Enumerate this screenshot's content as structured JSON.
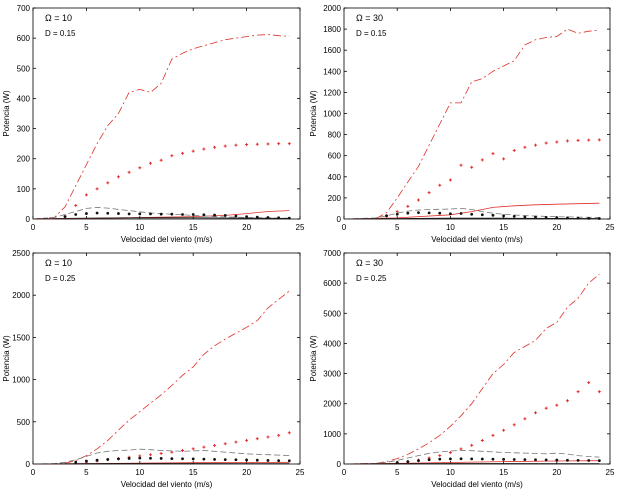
{
  "colors": {
    "red": "#e0302a",
    "black": "#111111",
    "gray": "#777777",
    "axis": "#000000"
  },
  "chart_data": [
    {
      "type": "line",
      "annotation_omega": "Ω = 10",
      "annotation_D": "D = 0.15",
      "xlabel": "Velocidad del viento (m/s)",
      "ylabel": "Potencia (W)",
      "xlim": [
        0,
        25
      ],
      "ylim": [
        0,
        700
      ],
      "xticks": [
        0,
        5,
        10,
        15,
        20,
        25
      ],
      "yticks": [
        0,
        100,
        200,
        300,
        400,
        500,
        600,
        700
      ],
      "series": [
        {
          "style": "dashdot",
          "color": "red",
          "x": [
            0,
            2,
            3,
            4,
            5,
            6,
            7,
            8,
            9,
            10,
            11,
            12,
            13,
            14,
            15,
            16,
            17,
            18,
            19,
            20,
            21,
            22,
            23,
            24
          ],
          "y": [
            0,
            5,
            40,
            110,
            180,
            250,
            310,
            350,
            420,
            430,
            420,
            450,
            530,
            550,
            565,
            575,
            585,
            595,
            600,
            605,
            610,
            612,
            608,
            606
          ]
        },
        {
          "style": "plus-markers",
          "color": "red",
          "x": [
            3,
            4,
            5,
            6,
            7,
            8,
            9,
            10,
            11,
            12,
            13,
            14,
            15,
            16,
            17,
            18,
            19,
            20,
            21,
            22,
            23,
            24
          ],
          "y": [
            10,
            45,
            80,
            100,
            120,
            140,
            155,
            170,
            185,
            195,
            210,
            218,
            225,
            232,
            238,
            242,
            245,
            247,
            248,
            249,
            250,
            250
          ]
        },
        {
          "style": "solid",
          "color": "red",
          "x": [
            0,
            5,
            10,
            15,
            18,
            20,
            22,
            24
          ],
          "y": [
            0,
            2,
            5,
            8,
            12,
            18,
            25,
            28
          ]
        },
        {
          "style": "dashed",
          "color": "gray",
          "x": [
            0,
            2,
            3,
            4,
            5,
            6,
            7,
            8,
            9,
            10,
            11,
            12,
            13,
            14,
            15,
            16,
            17,
            18,
            19,
            20,
            21,
            22,
            23,
            24
          ],
          "y": [
            0,
            5,
            15,
            25,
            35,
            38,
            36,
            32,
            28,
            24,
            20,
            18,
            16,
            14,
            12,
            10,
            8,
            7,
            6,
            5,
            4,
            4,
            3,
            3
          ]
        },
        {
          "style": "dot-markers",
          "color": "black",
          "x": [
            3,
            4,
            5,
            6,
            7,
            8,
            9,
            10,
            11,
            12,
            13,
            14,
            15,
            16,
            17,
            18,
            19,
            20,
            21,
            22,
            23,
            24
          ],
          "y": [
            8,
            15,
            18,
            20,
            19,
            18,
            17,
            17,
            17,
            16,
            16,
            15,
            15,
            14,
            13,
            12,
            10,
            8,
            6,
            5,
            4,
            3
          ]
        },
        {
          "style": "solid",
          "color": "black",
          "x": [
            0,
            3,
            5,
            10,
            15,
            20,
            24
          ],
          "y": [
            0,
            2,
            3,
            4,
            4,
            3,
            2
          ]
        }
      ]
    },
    {
      "type": "line",
      "annotation_omega": "Ω = 30",
      "annotation_D": "D = 0.15",
      "xlabel": "Velocidad del viento (m/s)",
      "ylabel": "Potencia (W)",
      "xlim": [
        0,
        25
      ],
      "ylim": [
        0,
        2000
      ],
      "xticks": [
        0,
        5,
        10,
        15,
        20,
        25
      ],
      "yticks": [
        0,
        200,
        400,
        600,
        800,
        1000,
        1200,
        1400,
        1600,
        1800,
        2000
      ],
      "series": [
        {
          "style": "dashdot",
          "color": "red",
          "x": [
            0,
            3,
            4,
            5,
            6,
            7,
            8,
            9,
            10,
            11,
            12,
            13,
            14,
            15,
            16,
            17,
            18,
            19,
            20,
            21,
            22,
            23,
            24
          ],
          "y": [
            0,
            5,
            60,
            200,
            350,
            500,
            700,
            900,
            1100,
            1100,
            1300,
            1330,
            1400,
            1450,
            1500,
            1650,
            1700,
            1720,
            1730,
            1800,
            1760,
            1780,
            1790
          ]
        },
        {
          "style": "plus-markers",
          "color": "red",
          "x": [
            4,
            5,
            6,
            7,
            8,
            9,
            10,
            11,
            12,
            13,
            14,
            15,
            16,
            17,
            18,
            19,
            20,
            21,
            22,
            23,
            24
          ],
          "y": [
            30,
            70,
            120,
            180,
            250,
            320,
            370,
            510,
            490,
            560,
            620,
            570,
            650,
            680,
            700,
            720,
            730,
            740,
            745,
            748,
            750
          ]
        },
        {
          "style": "solid",
          "color": "red",
          "x": [
            0,
            5,
            10,
            12,
            14,
            16,
            18,
            20,
            22,
            24
          ],
          "y": [
            0,
            10,
            40,
            70,
            110,
            125,
            135,
            140,
            145,
            150
          ]
        },
        {
          "style": "dashed",
          "color": "gray",
          "x": [
            0,
            3,
            4,
            5,
            6,
            7,
            8,
            9,
            10,
            11,
            12,
            13,
            14,
            15,
            16,
            17,
            18,
            19,
            20,
            21,
            22,
            23,
            24
          ],
          "y": [
            0,
            10,
            30,
            55,
            75,
            85,
            90,
            92,
            95,
            100,
            90,
            70,
            55,
            45,
            38,
            32,
            28,
            25,
            22,
            20,
            18,
            16,
            15
          ]
        },
        {
          "style": "dot-markers",
          "color": "black",
          "x": [
            4,
            5,
            6,
            7,
            8,
            9,
            10,
            11,
            12,
            13,
            14,
            15,
            16,
            17,
            18,
            19,
            20,
            21,
            22,
            23,
            24
          ],
          "y": [
            30,
            45,
            55,
            60,
            58,
            55,
            50,
            52,
            45,
            40,
            35,
            30,
            25,
            20,
            18,
            15,
            12,
            10,
            8,
            6,
            5
          ]
        },
        {
          "style": "solid",
          "color": "black",
          "x": [
            0,
            5,
            10,
            15,
            20,
            24
          ],
          "y": [
            0,
            5,
            8,
            8,
            6,
            5
          ]
        }
      ]
    },
    {
      "type": "line",
      "annotation_omega": "Ω = 10",
      "annotation_D": "D = 0.25",
      "xlabel": "Velocidad del viento (m/s)",
      "ylabel": "Potencia (W)",
      "xlim": [
        0,
        25
      ],
      "ylim": [
        0,
        2500
      ],
      "xticks": [
        0,
        5,
        10,
        15,
        20,
        25
      ],
      "yticks": [
        0,
        500,
        1000,
        1500,
        2000,
        2500
      ],
      "series": [
        {
          "style": "dashdot",
          "color": "red",
          "x": [
            0,
            2,
            3,
            4,
            5,
            6,
            7,
            8,
            9,
            10,
            11,
            12,
            13,
            14,
            15,
            16,
            17,
            18,
            19,
            20,
            21,
            22,
            23,
            24
          ],
          "y": [
            0,
            2,
            10,
            40,
            100,
            180,
            280,
            400,
            520,
            620,
            720,
            820,
            930,
            1050,
            1150,
            1300,
            1400,
            1480,
            1550,
            1620,
            1700,
            1850,
            1950,
            2050
          ]
        },
        {
          "style": "plus-markers",
          "color": "red",
          "x": [
            5,
            6,
            7,
            8,
            9,
            10,
            11,
            12,
            13,
            14,
            15,
            16,
            17,
            18,
            19,
            20,
            21,
            22,
            23,
            24
          ],
          "y": [
            20,
            35,
            50,
            65,
            80,
            95,
            110,
            125,
            140,
            160,
            180,
            200,
            220,
            240,
            260,
            280,
            300,
            320,
            340,
            370
          ]
        },
        {
          "style": "solid",
          "color": "red",
          "x": [
            0,
            5,
            10,
            15,
            20,
            24
          ],
          "y": [
            0,
            5,
            10,
            15,
            18,
            20
          ]
        },
        {
          "style": "dashed",
          "color": "gray",
          "x": [
            0,
            2,
            3,
            4,
            5,
            6,
            7,
            8,
            9,
            10,
            11,
            12,
            13,
            14,
            15,
            16,
            17,
            18,
            19,
            20,
            21,
            22,
            23,
            24
          ],
          "y": [
            0,
            5,
            20,
            50,
            90,
            130,
            150,
            160,
            165,
            175,
            170,
            160,
            155,
            150,
            155,
            160,
            150,
            140,
            130,
            120,
            115,
            110,
            105,
            100
          ]
        },
        {
          "style": "dot-markers",
          "color": "black",
          "x": [
            4,
            5,
            6,
            7,
            8,
            9,
            10,
            11,
            12,
            13,
            14,
            15,
            16,
            17,
            18,
            19,
            20,
            21,
            22,
            23,
            24
          ],
          "y": [
            20,
            35,
            45,
            55,
            60,
            65,
            70,
            68,
            66,
            64,
            62,
            60,
            58,
            55,
            52,
            50,
            48,
            45,
            42,
            40,
            38
          ]
        },
        {
          "style": "solid",
          "color": "black",
          "x": [
            0,
            5,
            10,
            15,
            20,
            24
          ],
          "y": [
            0,
            4,
            6,
            6,
            5,
            4
          ]
        }
      ]
    },
    {
      "type": "line",
      "annotation_omega": "Ω = 30",
      "annotation_D": "D = 0.25",
      "xlabel": "Velocidad del viento (m/s)",
      "ylabel": "Potencia (W)",
      "xlim": [
        0,
        25
      ],
      "ylim": [
        0,
        7000
      ],
      "xticks": [
        0,
        5,
        10,
        15,
        20,
        25
      ],
      "yticks": [
        0,
        1000,
        2000,
        3000,
        4000,
        5000,
        6000,
        7000
      ],
      "series": [
        {
          "style": "dashdot",
          "color": "red",
          "x": [
            0,
            3,
            4,
            5,
            6,
            7,
            8,
            9,
            10,
            11,
            12,
            13,
            14,
            15,
            16,
            17,
            18,
            19,
            20,
            21,
            22,
            23,
            24
          ],
          "y": [
            0,
            20,
            80,
            180,
            320,
            500,
            700,
            950,
            1250,
            1600,
            2000,
            2500,
            3000,
            3300,
            3700,
            3900,
            4100,
            4500,
            4700,
            5200,
            5500,
            6000,
            6300
          ]
        },
        {
          "style": "plus-markers",
          "color": "red",
          "x": [
            5,
            6,
            7,
            8,
            9,
            10,
            11,
            12,
            13,
            14,
            15,
            16,
            17,
            18,
            19,
            20,
            21,
            22,
            23,
            24
          ],
          "y": [
            40,
            80,
            130,
            200,
            280,
            380,
            500,
            620,
            780,
            950,
            1120,
            1300,
            1500,
            1700,
            1850,
            1950,
            2100,
            2400,
            2700,
            2400
          ]
        },
        {
          "style": "solid",
          "color": "red",
          "x": [
            0,
            5,
            10,
            15,
            20,
            24
          ],
          "y": [
            0,
            20,
            50,
            80,
            100,
            110
          ]
        },
        {
          "style": "dashed",
          "color": "gray",
          "x": [
            0,
            3,
            4,
            5,
            6,
            7,
            8,
            9,
            10,
            11,
            12,
            13,
            14,
            15,
            16,
            17,
            18,
            19,
            20,
            21,
            22,
            23,
            24
          ],
          "y": [
            0,
            20,
            60,
            120,
            200,
            280,
            350,
            400,
            430,
            450,
            440,
            420,
            400,
            380,
            370,
            360,
            350,
            340,
            360,
            330,
            280,
            250,
            230
          ]
        },
        {
          "style": "dot-markers",
          "color": "black",
          "x": [
            5,
            6,
            7,
            8,
            9,
            10,
            11,
            12,
            13,
            14,
            15,
            16,
            17,
            18,
            19,
            20,
            21,
            22,
            23,
            24
          ],
          "y": [
            50,
            80,
            110,
            140,
            160,
            170,
            175,
            170,
            165,
            160,
            155,
            150,
            145,
            140,
            135,
            130,
            125,
            120,
            115,
            110
          ]
        },
        {
          "style": "solid",
          "color": "black",
          "x": [
            0,
            5,
            10,
            15,
            20,
            24
          ],
          "y": [
            0,
            10,
            15,
            15,
            12,
            10
          ]
        }
      ]
    }
  ]
}
